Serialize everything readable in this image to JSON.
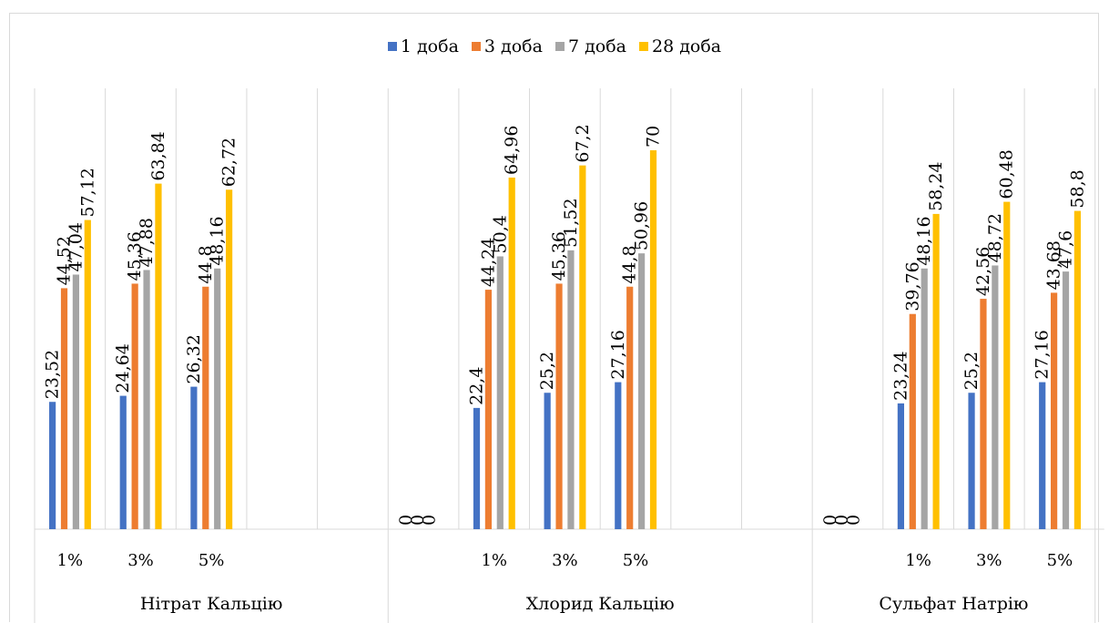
{
  "chart_data": {
    "type": "bar",
    "title": "",
    "xlabel": "",
    "ylabel": "",
    "ylim": [
      0,
      74
    ],
    "grid": false,
    "legend_position": "top",
    "series": [
      {
        "name": "1 доба",
        "color": "#4472c4"
      },
      {
        "name": "3 доба",
        "color": "#ed7d31"
      },
      {
        "name": "7 доба",
        "color": "#a5a5a5"
      },
      {
        "name": "28 доба",
        "color": "#ffc000"
      }
    ],
    "groups": [
      {
        "name": "Нітрат Кальцію",
        "categories": [
          {
            "label": "1%",
            "values": [
              23.52,
              44.52,
              47.04,
              57.12
            ],
            "labels": [
              "23,52",
              "44,52",
              "47,04",
              "57,12"
            ]
          },
          {
            "label": "3%",
            "values": [
              24.64,
              45.36,
              47.88,
              63.84
            ],
            "labels": [
              "24,64",
              "45,36",
              "47,88",
              "63,84"
            ]
          },
          {
            "label": "5%",
            "values": [
              26.32,
              44.8,
              48.16,
              62.72
            ],
            "labels": [
              "26,32",
              "44,8",
              "48,16",
              "62,72"
            ]
          },
          {
            "label": "",
            "values": [],
            "labels": []
          },
          {
            "label": "",
            "values": [],
            "labels": []
          }
        ]
      },
      {
        "name": "Хлорид Кальцію",
        "categories": [
          {
            "label": "",
            "values": [
              0,
              0,
              0
            ],
            "labels": [
              "0",
              "0",
              "0"
            ]
          },
          {
            "label": "1%",
            "values": [
              22.4,
              44.24,
              50.4,
              64.96
            ],
            "labels": [
              "22,4",
              "44,24",
              "50,4",
              "64,96"
            ]
          },
          {
            "label": "3%",
            "values": [
              25.2,
              45.36,
              51.52,
              67.2
            ],
            "labels": [
              "25,2",
              "45,36",
              "51,52",
              "67,2"
            ]
          },
          {
            "label": "5%",
            "values": [
              27.16,
              44.8,
              50.96,
              70
            ],
            "labels": [
              "27,16",
              "44,8",
              "50,96",
              "70"
            ]
          },
          {
            "label": "",
            "values": [],
            "labels": []
          },
          {
            "label": "",
            "values": [],
            "labels": []
          }
        ]
      },
      {
        "name": "Сульфат Натрію",
        "categories": [
          {
            "label": "",
            "values": [
              0,
              0,
              0
            ],
            "labels": [
              "0",
              "0",
              "0"
            ]
          },
          {
            "label": "1%",
            "values": [
              23.24,
              39.76,
              48.16,
              58.24
            ],
            "labels": [
              "23,24",
              "39,76",
              "48,16",
              "58,24"
            ]
          },
          {
            "label": "3%",
            "values": [
              25.2,
              42.56,
              48.72,
              60.48
            ],
            "labels": [
              "25,2",
              "42,56",
              "48,72",
              "60,48"
            ]
          },
          {
            "label": "5%",
            "values": [
              27.16,
              43.68,
              47.6,
              58.8
            ],
            "labels": [
              "27,16",
              "43,68",
              "47,6",
              "58,8"
            ]
          }
        ]
      }
    ]
  }
}
